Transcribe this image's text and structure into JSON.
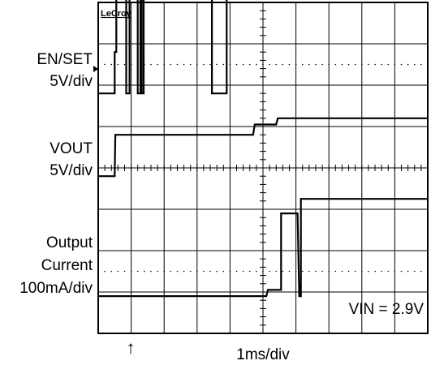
{
  "brand": "LeCroy",
  "channels": [
    {
      "name": "EN/SET",
      "scale": "5V/div"
    },
    {
      "name": "VOUT",
      "scale": "5V/div"
    },
    {
      "name": "Output",
      "name2": "Current",
      "scale": "100mA/div"
    }
  ],
  "timebase": "1ms/div",
  "vin_label": "VIN = 2.9V",
  "trigger_marker": "↑",
  "chart_data": {
    "type": "line",
    "title": "",
    "xlabel": "1ms/div",
    "time_unit": "ms",
    "x_range": [
      -0.5,
      9.5
    ],
    "grid": {
      "horizontal_divisions": 8,
      "vertical_divisions": 10,
      "on": true
    },
    "series": [
      {
        "name": "EN/SET",
        "scale": "5V/div",
        "points": [
          [
            -0.5,
            0
          ],
          [
            0.0,
            0
          ],
          [
            0.0,
            1
          ],
          [
            0.05,
            1
          ],
          [
            0.05,
            2.4
          ],
          [
            0.35,
            2.4
          ],
          [
            0.35,
            0
          ],
          [
            0.45,
            0
          ],
          [
            0.45,
            2.4
          ],
          [
            0.7,
            2.4
          ],
          [
            0.7,
            0
          ],
          [
            0.78,
            0
          ],
          [
            0.78,
            2.4
          ],
          [
            0.82,
            2.4
          ],
          [
            0.82,
            0
          ],
          [
            0.88,
            0
          ],
          [
            0.88,
            2.4
          ],
          [
            2.95,
            2.4
          ],
          [
            2.95,
            0
          ],
          [
            3.4,
            0
          ],
          [
            3.4,
            2.4
          ],
          [
            9.5,
            2.4
          ]
        ]
      },
      {
        "name": "VOUT",
        "scale": "5V/div",
        "points": [
          [
            -0.5,
            0
          ],
          [
            0.0,
            0
          ],
          [
            0.02,
            1.0
          ],
          [
            4.2,
            1.0
          ],
          [
            4.25,
            1.25
          ],
          [
            4.9,
            1.25
          ],
          [
            4.95,
            1.4
          ],
          [
            9.5,
            1.4
          ]
        ]
      },
      {
        "name": "Output Current",
        "scale": "100mA/div",
        "points": [
          [
            -0.5,
            0
          ],
          [
            4.6,
            0
          ],
          [
            4.65,
            0.15
          ],
          [
            5.05,
            0.15
          ],
          [
            5.05,
            2.0
          ],
          [
            5.55,
            2.0
          ],
          [
            5.6,
            0
          ],
          [
            5.65,
            0
          ],
          [
            5.65,
            2.35
          ],
          [
            9.5,
            2.35
          ]
        ]
      }
    ]
  }
}
